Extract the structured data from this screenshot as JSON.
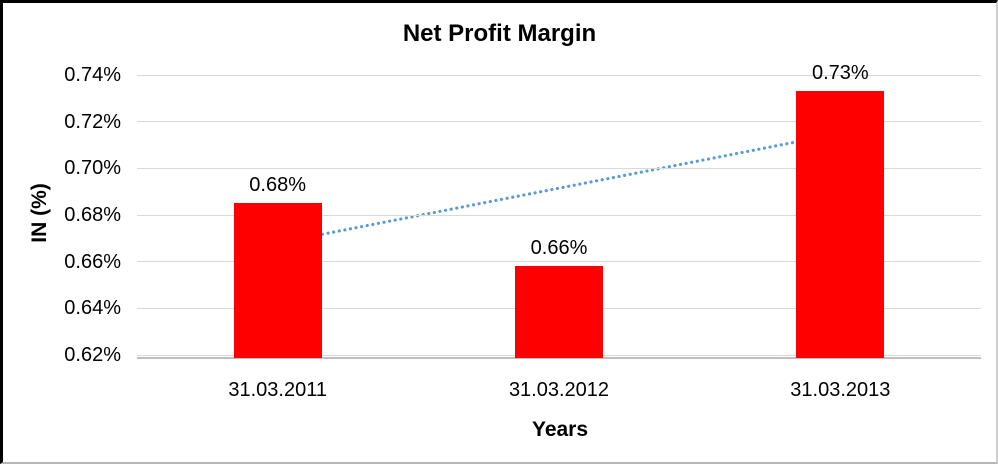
{
  "chart_data": {
    "type": "bar",
    "title": "Net Profit Margin",
    "xlabel": "Years",
    "ylabel": "IN (%)",
    "categories": [
      "31.03.2011",
      "31.03.2012",
      "31.03.2013"
    ],
    "series": [
      {
        "name": "Net Profit Margin",
        "values": [
          0.685,
          0.658,
          0.733
        ],
        "data_labels": [
          "0.68%",
          "0.66%",
          "0.73%"
        ]
      }
    ],
    "y_ticks": [
      {
        "label": "0.74%",
        "value": 0.74
      },
      {
        "label": "0.72%",
        "value": 0.72
      },
      {
        "label": "0.70%",
        "value": 0.7
      },
      {
        "label": "0.68%",
        "value": 0.68
      },
      {
        "label": "0.66%",
        "value": 0.66
      },
      {
        "label": "0.64%",
        "value": 0.64
      },
      {
        "label": "0.62%",
        "value": 0.62
      }
    ],
    "ylim": [
      0.62,
      0.74
    ],
    "grid": true,
    "legend": "none",
    "colors": {
      "bar": "#ff0000",
      "gridline": "#d9d9d9",
      "axis_line": "#bfbfbf",
      "trendline": "#5b9bd5",
      "text": "#000000"
    },
    "trendline": {
      "style": "dotted",
      "start_value": 0.668,
      "end_value": 0.715
    }
  }
}
